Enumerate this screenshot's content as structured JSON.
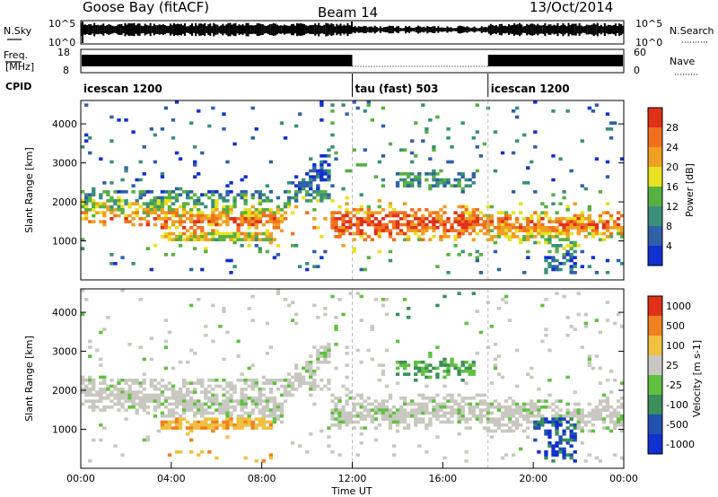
{
  "header": {
    "station": "Goose Bay (fitACF)",
    "beam": "Beam 14",
    "date": "13/Oct/2014"
  },
  "side_labels": {
    "nsky": "N.Sky",
    "nsearch": "N.Search",
    "freq": "Freq.",
    "mhz": "[MHz]",
    "nave": "Nave",
    "cpid": "CPID"
  },
  "noise_panel": {
    "left_ticks": [
      "10^5",
      "10^0"
    ],
    "right_ticks": [
      "10^5",
      "10^0"
    ]
  },
  "freq_panel": {
    "left_ticks": [
      "18",
      "8"
    ],
    "right_ticks": [
      "60",
      "0"
    ]
  },
  "cpid_segments": [
    {
      "label": "icescan 1200",
      "start": 0,
      "end": 12
    },
    {
      "label": "tau (fast) 503",
      "start": 12,
      "end": 18
    },
    {
      "label": "icescan 1200",
      "start": 18,
      "end": 24
    }
  ],
  "chart_data": [
    {
      "type": "heatmap",
      "name": "Power",
      "ylabel": "Slant Range [km]",
      "yticks": [
        "1000",
        "2000",
        "3000",
        "4000"
      ],
      "colorbar_label": "Power [dB]",
      "colorbar_ticks": [
        "4",
        "8",
        "12",
        "16",
        "20",
        "24",
        "28"
      ],
      "colors": [
        "#1030d0",
        "#3060a8",
        "#3a8f7a",
        "#58b040",
        "#e8e020",
        "#f0a020",
        "#f07020",
        "#e03018"
      ]
    },
    {
      "type": "heatmap",
      "name": "Velocity",
      "ylabel": "Slant Range [km]",
      "yticks": [
        "1000",
        "2000",
        "3000",
        "4000"
      ],
      "colorbar_label": "Velocity [m s-1]",
      "colorbar_ticks": [
        "1000",
        "500",
        "100",
        "25",
        "-25",
        "-100",
        "-500",
        "-1000"
      ],
      "colors": [
        "#1030d0",
        "#2050b0",
        "#3a8f5a",
        "#60c040",
        "#c8c8c0",
        "#f0c040",
        "#f08020",
        "#e03018"
      ]
    }
  ],
  "x_axis": {
    "label": "Time UT",
    "ticks": [
      "00:00",
      "04:00",
      "08:00",
      "12:00",
      "16:00",
      "20:00",
      "00:00"
    ]
  }
}
